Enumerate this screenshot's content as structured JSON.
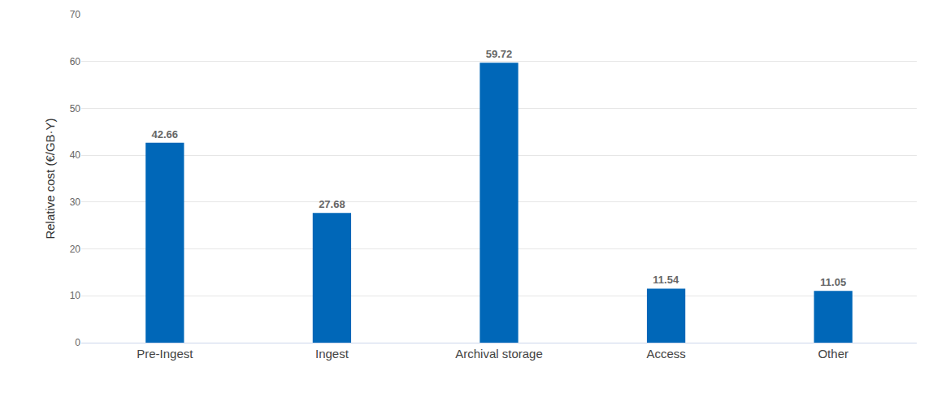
{
  "chart_data": {
    "type": "bar",
    "categories": [
      "Pre-Ingest",
      "Ingest",
      "Archival storage",
      "Access",
      "Other"
    ],
    "values": [
      42.66,
      27.68,
      59.72,
      11.54,
      11.05
    ],
    "color": "#0067b8",
    "y_label": "Relative cost (€/GB·Y)",
    "ylim": [
      0,
      70
    ],
    "yticks": [
      0,
      10,
      20,
      30,
      40,
      50,
      60,
      70
    ],
    "grid": true,
    "data_labels": true
  }
}
